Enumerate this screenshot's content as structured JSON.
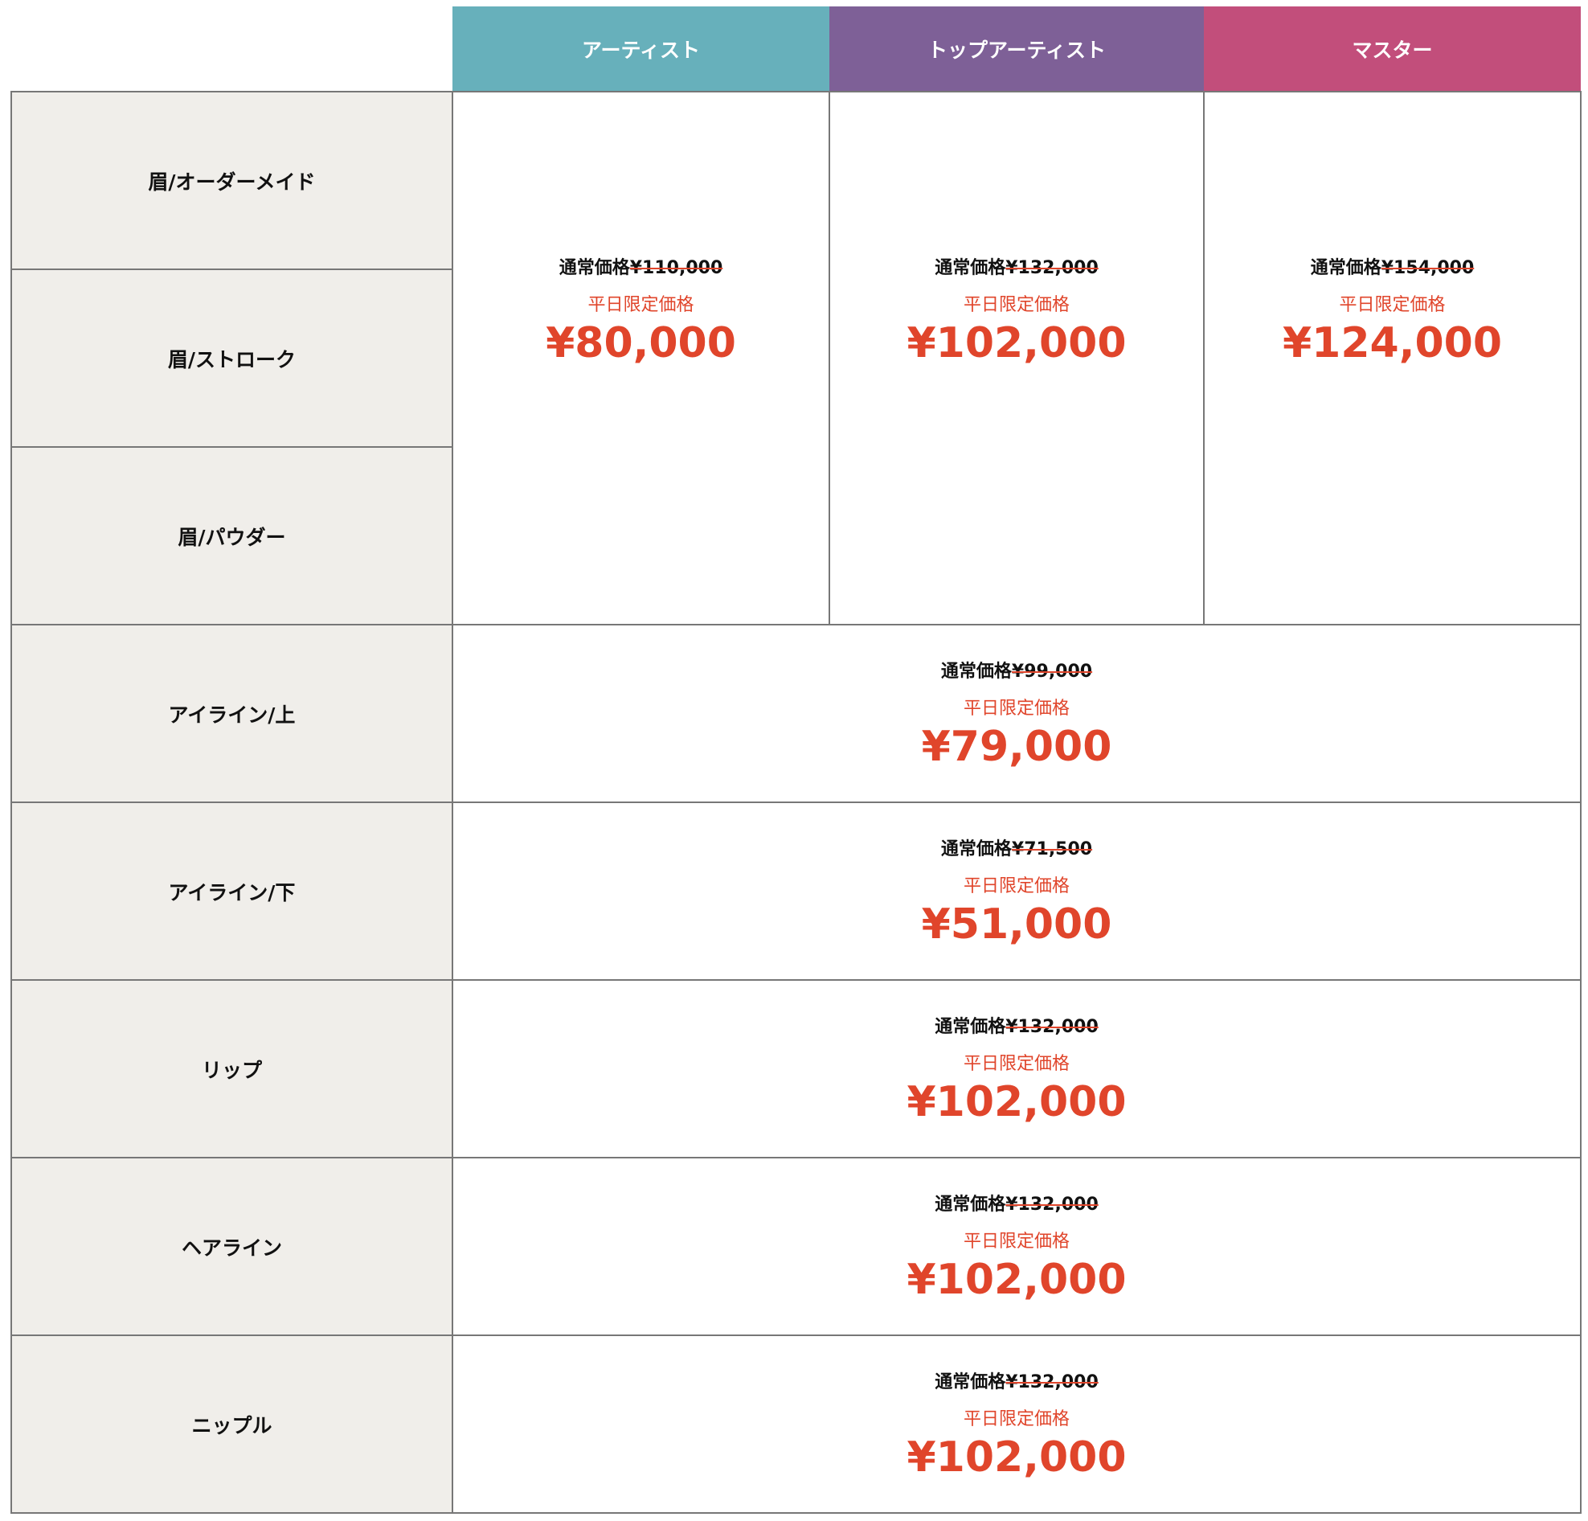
{
  "header": {
    "columns": [
      "アーティスト",
      "トップアーティスト",
      "マスター"
    ]
  },
  "brow": {
    "labels": [
      "眉/オーダーメイド",
      "眉/ストローク",
      "眉/パウダー"
    ],
    "prices": [
      {
        "regular_label": "通常価格",
        "regular": "¥110,000",
        "special_label": "平日限定価格",
        "special": "¥80,000"
      },
      {
        "regular_label": "通常価格",
        "regular": "¥132,000",
        "special_label": "平日限定価格",
        "special": "¥102,000"
      },
      {
        "regular_label": "通常価格",
        "regular": "¥154,000",
        "special_label": "平日限定価格",
        "special": "¥124,000"
      }
    ]
  },
  "rows": [
    {
      "label": "アイライン/上",
      "regular_label": "通常価格",
      "regular": "¥99,000",
      "special_label": "平日限定価格",
      "special": "¥79,000"
    },
    {
      "label": "アイライン/下",
      "regular_label": "通常価格",
      "regular": "¥71,500",
      "special_label": "平日限定価格",
      "special": "¥51,000"
    },
    {
      "label": "リップ",
      "regular_label": "通常価格",
      "regular": "¥132,000",
      "special_label": "平日限定価格",
      "special": "¥102,000"
    },
    {
      "label": "ヘアライン",
      "regular_label": "通常価格",
      "regular": "¥132,000",
      "special_label": "平日限定価格",
      "special": "¥102,000"
    },
    {
      "label": "ニップル",
      "regular_label": "通常価格",
      "regular": "¥132,000",
      "special_label": "平日限定価格",
      "special": "¥102,000"
    }
  ]
}
